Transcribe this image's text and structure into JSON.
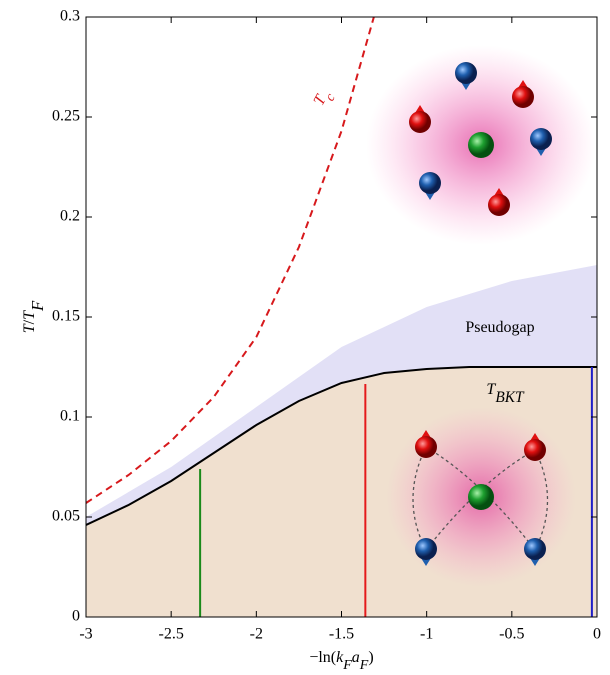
{
  "chart_data": {
    "type": "line",
    "xlim": [
      -3,
      0
    ],
    "ylim": [
      0,
      0.3
    ],
    "xticks": [
      -3,
      -2.5,
      -2,
      -1.5,
      -1,
      -0.5,
      0
    ],
    "yticks": [
      0,
      0.05,
      0.1,
      0.15,
      0.2,
      0.25,
      0.3
    ],
    "x_label": [
      {
        "text": "−ln("
      },
      {
        "text": "k",
        "italic": true
      },
      {
        "text": "F",
        "italic": true,
        "sub": true
      },
      {
        "text": "a",
        "italic": true
      },
      {
        "text": "F",
        "italic": true,
        "sub": true
      },
      {
        "text": ")"
      }
    ],
    "y_label": [
      {
        "text": "T",
        "italic": true
      },
      {
        "text": "/"
      },
      {
        "text": "T",
        "italic": true
      },
      {
        "text": "F",
        "italic": true,
        "sub": true
      }
    ],
    "series": [
      {
        "x": [
          -3,
          -2.75,
          -2.5,
          -2.25,
          -2,
          -1.75,
          -1.5,
          -1.25,
          -1,
          -0.75,
          -0.5,
          -0.25,
          0
        ],
        "values": [
          0.046,
          0.056,
          0.068,
          0.082,
          0.096,
          0.108,
          0.117,
          0.122,
          0.124,
          0.125,
          0.125,
          0.125,
          0.125
        ],
        "color": "#000000",
        "dash": false,
        "fill": "#f0e0cf"
      },
      {
        "x": [
          -3,
          -2.5,
          -2,
          -1.5,
          -1,
          -0.5,
          0
        ],
        "values": [
          0.05,
          0.075,
          0.105,
          0.135,
          0.155,
          0.168,
          0.176
        ],
        "color": "none",
        "dash": false,
        "fill": "#e2e0f6",
        "fill_to_series": 0
      },
      {
        "x": [
          -3,
          -2.75,
          -2.5,
          -2.25,
          -2,
          -1.75,
          -1.5,
          -1.31
        ],
        "values": [
          0.057,
          0.071,
          0.088,
          0.11,
          0.14,
          0.185,
          0.243,
          0.3
        ],
        "color": "#d7191c",
        "dash": true
      }
    ],
    "vertical_lines": [
      {
        "x": -2.33,
        "top": 0.074,
        "color": "#1a8a1a"
      },
      {
        "x": -1.36,
        "top": 0.1165,
        "color": "#e41a1c"
      },
      {
        "x": -0.03,
        "top": 0.125,
        "color": "#1f1fc8"
      }
    ],
    "annotations": [
      {
        "parts": [
          {
            "text": "T",
            "italic": true
          },
          {
            "text": "c",
            "italic": true,
            "sub": true
          }
        ],
        "color": "#d7191c"
      },
      {
        "parts": [
          {
            "text": "Pseudogap"
          }
        ],
        "color": "#000"
      },
      {
        "parts": [
          {
            "text": "T",
            "italic": true
          },
          {
            "text": "BKT",
            "italic": true,
            "sub": true
          }
        ],
        "color": "#000"
      }
    ]
  }
}
